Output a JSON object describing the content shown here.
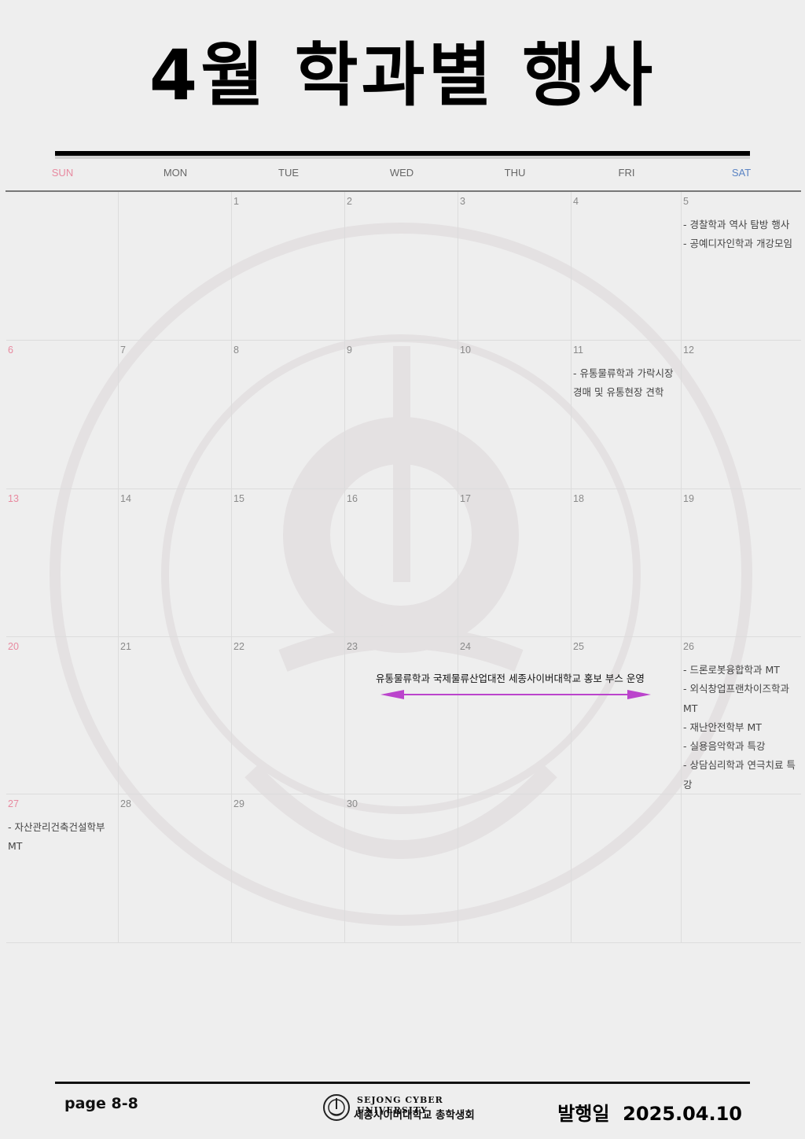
{
  "title": "4월 학과별 행사",
  "weekdays": [
    "SUN",
    "MON",
    "TUE",
    "WED",
    "THU",
    "FRI",
    "SAT"
  ],
  "colors": {
    "sunday": "#e88aa0",
    "saturday": "#5b84c4",
    "arrow": "#bb44cc"
  },
  "weeks": [
    {
      "days": [
        {
          "date": "",
          "events": []
        },
        {
          "date": "",
          "events": []
        },
        {
          "date": "1",
          "events": []
        },
        {
          "date": "2",
          "events": []
        },
        {
          "date": "3",
          "events": []
        },
        {
          "date": "4",
          "events": []
        },
        {
          "date": "5",
          "events": [
            "- 경찰학과 역사 탐방 행사",
            "- 공예디자인학과 개강모임"
          ]
        }
      ]
    },
    {
      "days": [
        {
          "date": "6",
          "events": []
        },
        {
          "date": "7",
          "events": []
        },
        {
          "date": "8",
          "events": []
        },
        {
          "date": "9",
          "events": []
        },
        {
          "date": "10",
          "events": []
        },
        {
          "date": "11",
          "events": [
            "- 유통물류학과 가락시장 경매 및 유통현장 견학"
          ]
        },
        {
          "date": "12",
          "events": []
        }
      ]
    },
    {
      "days": [
        {
          "date": "13",
          "events": []
        },
        {
          "date": "14",
          "events": []
        },
        {
          "date": "15",
          "events": []
        },
        {
          "date": "16",
          "events": []
        },
        {
          "date": "17",
          "events": []
        },
        {
          "date": "18",
          "events": []
        },
        {
          "date": "19",
          "events": []
        }
      ]
    },
    {
      "days": [
        {
          "date": "20",
          "events": []
        },
        {
          "date": "21",
          "events": []
        },
        {
          "date": "22",
          "events": []
        },
        {
          "date": "23",
          "events": []
        },
        {
          "date": "24",
          "events": []
        },
        {
          "date": "25",
          "events": []
        },
        {
          "date": "26",
          "events": [
            "- 드론로봇융합학과 MT",
            "- 외식창업프랜차이즈학과 MT",
            "- 재난안전학부 MT",
            "- 실용음악학과 특강",
            "- 상담심리학과 연극치료 특강"
          ]
        }
      ]
    },
    {
      "days": [
        {
          "date": "27",
          "events": [
            "- 자산관리건축건설학부 MT"
          ]
        },
        {
          "date": "28",
          "events": []
        },
        {
          "date": "29",
          "events": []
        },
        {
          "date": "30",
          "events": []
        },
        {
          "date": "",
          "events": []
        },
        {
          "date": "",
          "events": []
        },
        {
          "date": "",
          "events": []
        }
      ]
    }
  ],
  "spanning_event": "유통물류학과 국제물류산업대전 세종사이버대학교 홍보 부스 운영",
  "footer": {
    "page": "page 8-8",
    "logo_en": "SEJONG CYBER UNIVERSITY",
    "logo_ko": "세종사이버대학교 총학생회",
    "issue_label": "발행일",
    "issue_date": "2025.04.10"
  }
}
